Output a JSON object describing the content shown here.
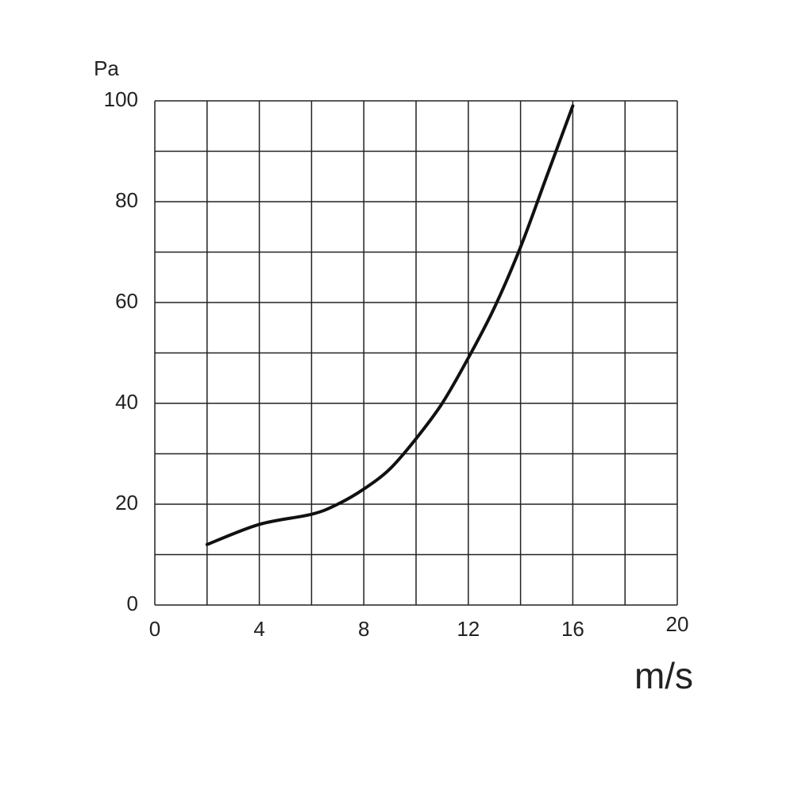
{
  "chart_data": {
    "type": "line",
    "ylabel": "Pa",
    "xlabel": "m/s",
    "x": [
      2,
      4,
      6,
      7,
      8,
      9,
      10,
      11,
      12,
      13,
      14,
      15,
      16
    ],
    "series": [
      {
        "color": "#111111",
        "values": [
          12,
          16,
          18,
          20,
          23,
          27,
          33,
          40,
          49,
          59,
          71,
          85,
          99
        ]
      }
    ],
    "xlim": [
      0,
      20
    ],
    "ylim": [
      0,
      100
    ],
    "xticks": [
      0,
      4,
      8,
      12,
      16,
      20
    ],
    "yticks": [
      0,
      20,
      40,
      60,
      80,
      100
    ],
    "xgrid": [
      0,
      2,
      4,
      6,
      8,
      10,
      12,
      14,
      16,
      18,
      20
    ],
    "ygrid": [
      0,
      10,
      20,
      30,
      40,
      50,
      60,
      70,
      80,
      90,
      100
    ],
    "grid": true
  }
}
